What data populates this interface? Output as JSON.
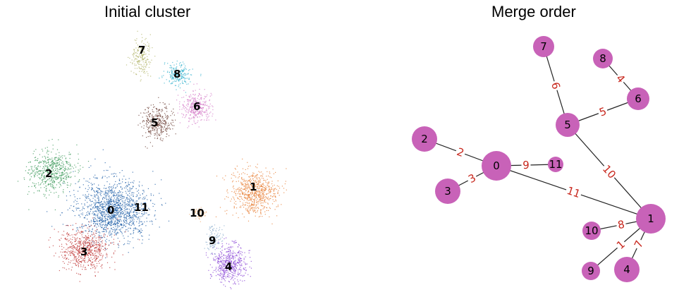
{
  "panels": {
    "left_title": "Initial cluster",
    "right_title": "Merge order"
  },
  "scatter": {
    "clusters": [
      {
        "id": "0",
        "color": "#1f5fa8"
      },
      {
        "id": "1",
        "color": "#e8823a"
      },
      {
        "id": "2",
        "color": "#3c9a5a"
      },
      {
        "id": "3",
        "color": "#c03a3a"
      },
      {
        "id": "4",
        "color": "#8a45d6"
      },
      {
        "id": "5",
        "color": "#6b3f36"
      },
      {
        "id": "6",
        "color": "#d47ac8"
      },
      {
        "id": "7",
        "color": "#b3b56a"
      },
      {
        "id": "8",
        "color": "#39b4d0"
      },
      {
        "id": "9",
        "color": "#8fb0d0"
      },
      {
        "id": "10",
        "color": "#f0b27a"
      },
      {
        "id": "11",
        "color": "#1f5fa8"
      }
    ]
  },
  "graph": {
    "node_color": "#c862b8",
    "nodes": [
      "0",
      "1",
      "2",
      "3",
      "4",
      "5",
      "6",
      "7",
      "8",
      "9",
      "10",
      "11"
    ],
    "edges": [
      {
        "from": "7",
        "to": "5",
        "label": "6"
      },
      {
        "from": "8",
        "to": "6",
        "label": "4"
      },
      {
        "from": "5",
        "to": "6",
        "label": "5"
      },
      {
        "from": "2",
        "to": "0",
        "label": "2"
      },
      {
        "from": "3",
        "to": "0",
        "label": "3"
      },
      {
        "from": "0",
        "to": "11",
        "label": "9"
      },
      {
        "from": "5",
        "to": "1",
        "label": "10"
      },
      {
        "from": "0",
        "to": "1",
        "label": "11"
      },
      {
        "from": "10",
        "to": "1",
        "label": "8"
      },
      {
        "from": "9",
        "to": "1",
        "label": "1"
      },
      {
        "from": "4",
        "to": "1",
        "label": "7"
      }
    ]
  }
}
